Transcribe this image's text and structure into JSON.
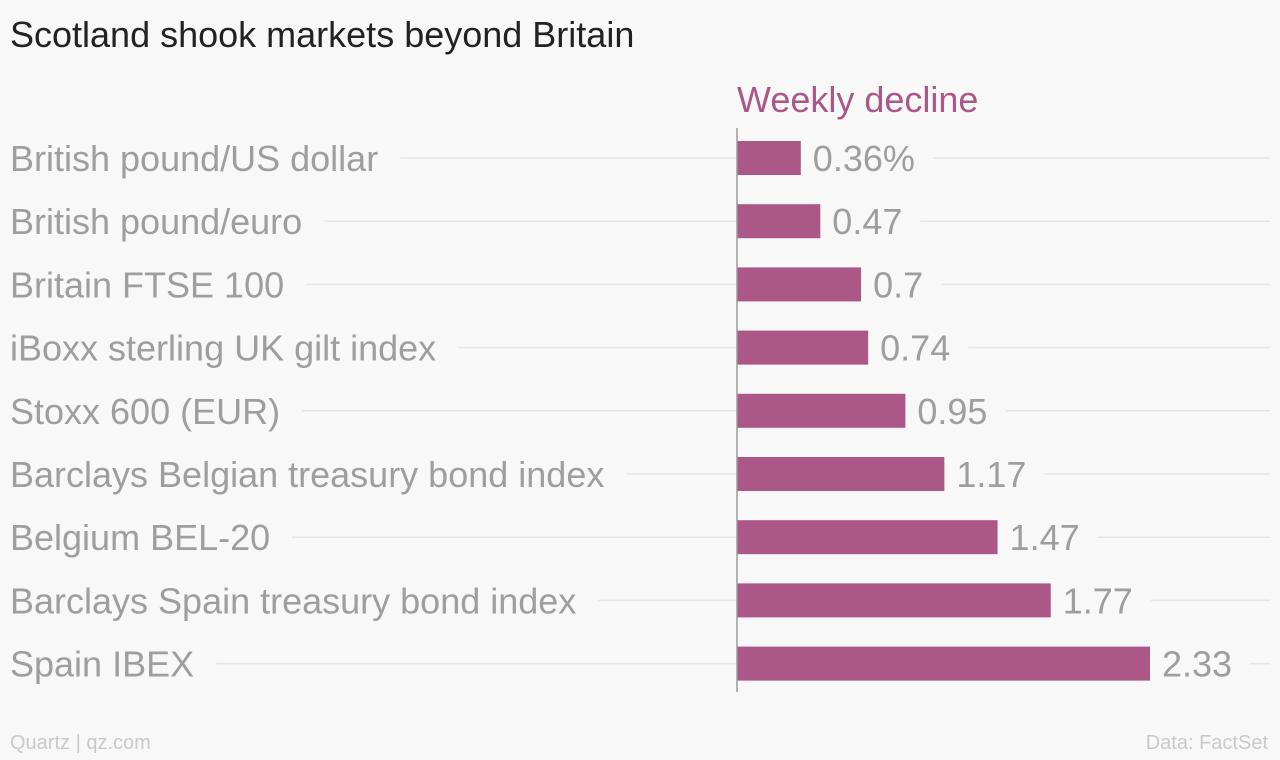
{
  "chart_data": {
    "type": "bar",
    "orientation": "horizontal",
    "title": "Scotland shook markets beyond Britain",
    "series_label": "Weekly decline",
    "categories": [
      "British pound/US dollar",
      "British pound/euro",
      "Britain FTSE 100",
      "iBoxx sterling UK gilt index",
      "Stoxx 600 (EUR)",
      "Barclays Belgian treasury bond index",
      "Belgium BEL-20",
      "Barclays Spain treasury bond index",
      "Spain IBEX"
    ],
    "values": [
      0.36,
      0.47,
      0.7,
      0.74,
      0.95,
      1.17,
      1.47,
      1.77,
      2.33
    ],
    "value_labels": [
      "0.36%",
      "0.47",
      "0.7",
      "0.74",
      "0.95",
      "1.17",
      "1.47",
      "1.77",
      "2.33"
    ],
    "xlim": [
      0,
      2.33
    ],
    "grid": true,
    "colors": {
      "bar": "#ab5787",
      "series_label": "#ab5787",
      "category_text": "#9e9e9e",
      "value_text": "#9e9e9e",
      "gridline": "#e6e6e6",
      "axis": "#9a9a9a"
    }
  },
  "footer": {
    "source_left": "Quartz | qz.com",
    "source_right": "Data: FactSet"
  }
}
